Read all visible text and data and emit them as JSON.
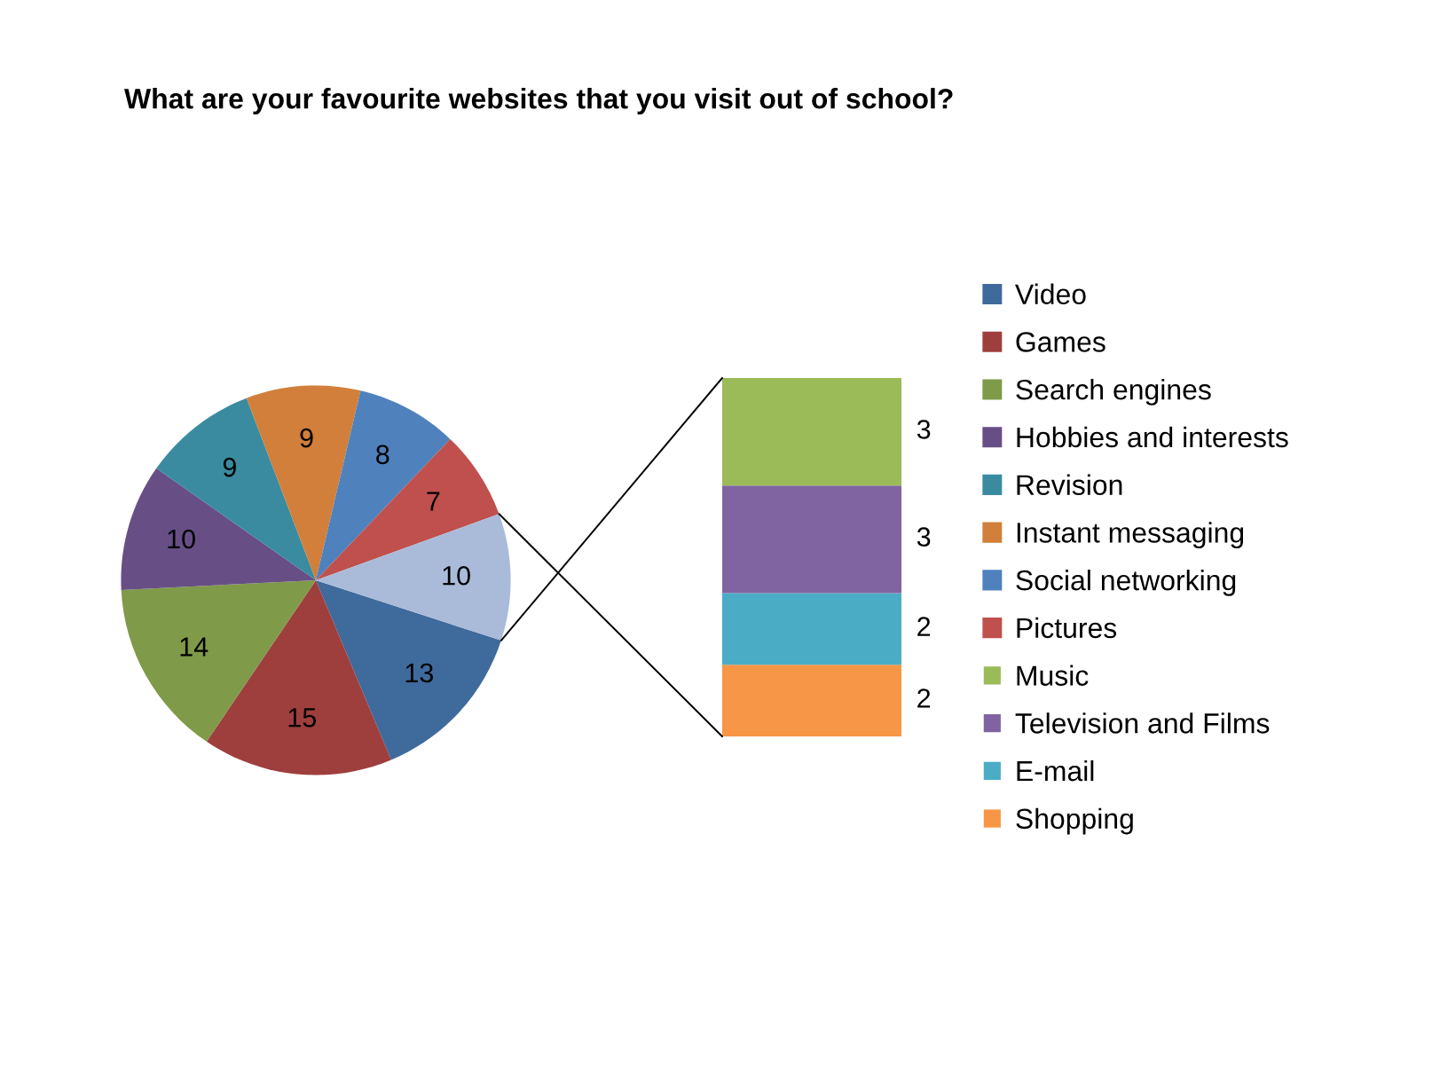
{
  "chart_data": [
    {
      "type": "pie",
      "title": "What are your favourite websites that you visit out of school?",
      "categories": [
        "Video",
        "Games",
        "Search engines",
        "Hobbies and interests",
        "Revision",
        "Instant messaging",
        "Social networking",
        "Pictures",
        null
      ],
      "values": [
        13,
        15,
        14,
        10,
        9,
        9,
        8,
        7,
        10
      ],
      "colors": [
        "#3f6a9c",
        "#9e3f3d",
        "#7f9a48",
        "#674f86",
        "#3a8ba0",
        "#d17f3a",
        "#4f81bd",
        "#c0504d",
        "#a9bbd9"
      ],
      "data_labels": true,
      "legend": "right"
    },
    {
      "type": "bar",
      "stacked": true,
      "categories": [
        null
      ],
      "series": [
        {
          "name": "Shopping",
          "color": "#f79646",
          "values": [
            2
          ]
        },
        {
          "name": "E-mail",
          "color": "#4bacc6",
          "values": [
            2
          ]
        },
        {
          "name": "Television and Films",
          "color": "#8064a2",
          "values": [
            3
          ]
        },
        {
          "name": "Music",
          "color": "#9bbb59",
          "values": [
            3
          ]
        }
      ],
      "data_labels": true,
      "legend": "right"
    }
  ]
}
